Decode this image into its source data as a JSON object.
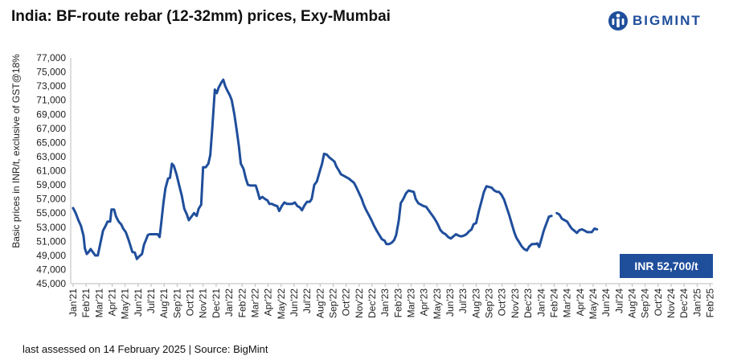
{
  "title": "India: BF-route rebar (12-32mm) prices, Exy-Mumbai",
  "brand": {
    "name": "BIGMINT",
    "color": "#1f4e9b"
  },
  "footer": "last assessed on 14 February 2025 | Source: BigMint",
  "chart_data": {
    "type": "line",
    "ylabel": "Basic prices in INR/t, exclusive of GST@18%",
    "ylim": [
      45000,
      77000
    ],
    "yticks": [
      "45,000",
      "47,000",
      "49,000",
      "51,000",
      "53,000",
      "55,000",
      "57,000",
      "59,000",
      "61,000",
      "63,000",
      "65,000",
      "67,000",
      "69,000",
      "71,000",
      "73,000",
      "75,000",
      "77,000"
    ],
    "categories": [
      "Jan'21",
      "Feb'21",
      "Mar'21",
      "Apr'21",
      "May'21",
      "Jun'21",
      "Jul'21",
      "Aug'21",
      "Sep'21",
      "Oct'21",
      "Nov'21",
      "Dec'21",
      "Jan'22",
      "Feb'22",
      "Mar'22",
      "Apr'22",
      "May'22",
      "Jun'22",
      "Jul'22",
      "Aug'22",
      "Sep'22",
      "Oct'22",
      "Nov'22",
      "Dec'22",
      "Jan'23",
      "Feb'23",
      "Mar'23",
      "Apr'23",
      "May'23",
      "Jun'23",
      "Jul'23",
      "Aug'23",
      "Sep'23",
      "Oct'23",
      "Nov'23",
      "Dec'23",
      "Jan'24",
      "Feb'24",
      "Mar'24",
      "Apr'24",
      "May'24",
      "Jun'24",
      "Jul'24",
      "Aug'24",
      "Sep'24",
      "Oct'24",
      "Nov'24",
      "Dec'24",
      "Jan'25",
      "Feb'25"
    ],
    "line_color": "#1f4e9b",
    "series": [
      {
        "values": [
          [
            0,
            55700
          ],
          [
            0.2,
            55000
          ],
          [
            0.4,
            54000
          ],
          [
            0.6,
            53200
          ],
          [
            0.8,
            51800
          ],
          [
            0.9,
            50000
          ],
          [
            1.05,
            49200
          ],
          [
            1.2,
            49500
          ],
          [
            1.35,
            49900
          ],
          [
            1.5,
            49500
          ],
          [
            1.7,
            49000
          ],
          [
            1.9,
            49000
          ],
          [
            2.1,
            50800
          ],
          [
            2.3,
            52500
          ],
          [
            2.5,
            53200
          ],
          [
            2.65,
            53800
          ],
          [
            2.85,
            53800
          ],
          [
            2.95,
            55500
          ],
          [
            3.15,
            55500
          ],
          [
            3.3,
            54500
          ],
          [
            3.5,
            53800
          ],
          [
            3.7,
            53400
          ],
          [
            3.85,
            52800
          ],
          [
            4.05,
            52300
          ],
          [
            4.25,
            51300
          ],
          [
            4.4,
            50400
          ],
          [
            4.55,
            49500
          ],
          [
            4.75,
            49400
          ],
          [
            4.9,
            48500
          ],
          [
            5.1,
            48900
          ],
          [
            5.3,
            49200
          ],
          [
            5.45,
            50500
          ],
          [
            5.6,
            51200
          ],
          [
            5.75,
            51900
          ],
          [
            5.9,
            52000
          ],
          [
            6.1,
            52000
          ],
          [
            6.3,
            52000
          ],
          [
            6.5,
            52000
          ],
          [
            6.65,
            51600
          ],
          [
            6.8,
            54000
          ],
          [
            6.95,
            56500
          ],
          [
            7.1,
            58500
          ],
          [
            7.3,
            59900
          ],
          [
            7.45,
            60000
          ],
          [
            7.6,
            62000
          ],
          [
            7.75,
            61700
          ],
          [
            7.95,
            60500
          ],
          [
            8.15,
            59000
          ],
          [
            8.35,
            57500
          ],
          [
            8.55,
            55600
          ],
          [
            8.75,
            54800
          ],
          [
            8.9,
            54000
          ],
          [
            9.1,
            54500
          ],
          [
            9.3,
            55000
          ],
          [
            9.5,
            54600
          ],
          [
            9.65,
            55600
          ],
          [
            9.85,
            56200
          ],
          [
            10.0,
            61500
          ],
          [
            10.2,
            61500
          ],
          [
            10.4,
            62000
          ],
          [
            10.55,
            63200
          ],
          [
            10.7,
            67000
          ],
          [
            10.9,
            72500
          ],
          [
            11.05,
            72000
          ],
          [
            11.2,
            72800
          ],
          [
            11.4,
            73500
          ],
          [
            11.55,
            73900
          ],
          [
            11.7,
            73000
          ],
          [
            11.85,
            72400
          ],
          [
            12.05,
            71700
          ],
          [
            12.2,
            71000
          ],
          [
            12.4,
            69000
          ],
          [
            12.6,
            66500
          ],
          [
            12.75,
            64500
          ],
          [
            12.9,
            62000
          ],
          [
            13.1,
            61300
          ],
          [
            13.3,
            59800
          ],
          [
            13.45,
            59000
          ],
          [
            13.65,
            58900
          ],
          [
            13.85,
            58900
          ],
          [
            14.05,
            58900
          ],
          [
            14.2,
            58000
          ],
          [
            14.35,
            57000
          ],
          [
            14.55,
            57300
          ],
          [
            14.75,
            57000
          ],
          [
            14.95,
            56800
          ],
          [
            15.1,
            56300
          ],
          [
            15.3,
            56300
          ],
          [
            15.5,
            56100
          ],
          [
            15.7,
            56000
          ],
          [
            15.85,
            55300
          ],
          [
            16.05,
            56000
          ],
          [
            16.25,
            56500
          ],
          [
            16.45,
            56300
          ],
          [
            16.65,
            56300
          ],
          [
            16.85,
            56300
          ],
          [
            17.05,
            56500
          ],
          [
            17.25,
            56000
          ],
          [
            17.45,
            55800
          ],
          [
            17.6,
            55400
          ],
          [
            17.8,
            56100
          ],
          [
            18.0,
            56600
          ],
          [
            18.2,
            56600
          ],
          [
            18.35,
            57000
          ],
          [
            18.55,
            59000
          ],
          [
            18.75,
            59500
          ],
          [
            18.95,
            60800
          ],
          [
            19.15,
            62000
          ],
          [
            19.3,
            63400
          ],
          [
            19.5,
            63300
          ],
          [
            19.7,
            62900
          ],
          [
            19.9,
            62600
          ],
          [
            20.1,
            62300
          ],
          [
            20.25,
            61600
          ],
          [
            20.45,
            61000
          ],
          [
            20.6,
            60500
          ],
          [
            20.8,
            60300
          ],
          [
            21.0,
            60100
          ],
          [
            21.2,
            59900
          ],
          [
            21.4,
            59600
          ],
          [
            21.6,
            59300
          ],
          [
            21.8,
            58600
          ],
          [
            22.0,
            57800
          ],
          [
            22.2,
            57000
          ],
          [
            22.35,
            56200
          ],
          [
            22.55,
            55400
          ],
          [
            22.75,
            54700
          ],
          [
            22.95,
            54000
          ],
          [
            23.15,
            53200
          ],
          [
            23.35,
            52500
          ],
          [
            23.55,
            51900
          ],
          [
            23.75,
            51300
          ],
          [
            23.95,
            51100
          ],
          [
            24.1,
            50600
          ],
          [
            24.3,
            50600
          ],
          [
            24.5,
            50800
          ],
          [
            24.7,
            51200
          ],
          [
            24.85,
            51900
          ],
          [
            25.05,
            54000
          ],
          [
            25.2,
            56400
          ],
          [
            25.4,
            57000
          ],
          [
            25.6,
            57800
          ],
          [
            25.8,
            58200
          ],
          [
            26.0,
            58100
          ],
          [
            26.2,
            58000
          ],
          [
            26.35,
            57000
          ],
          [
            26.55,
            56400
          ],
          [
            26.75,
            56200
          ],
          [
            26.95,
            56000
          ],
          [
            27.15,
            55900
          ],
          [
            27.3,
            55500
          ],
          [
            27.5,
            55000
          ],
          [
            27.7,
            54500
          ],
          [
            27.9,
            53900
          ],
          [
            28.05,
            53400
          ],
          [
            28.25,
            52600
          ],
          [
            28.45,
            52200
          ],
          [
            28.65,
            52000
          ],
          [
            28.85,
            51600
          ],
          [
            29.05,
            51400
          ],
          [
            29.25,
            51700
          ],
          [
            29.45,
            52000
          ],
          [
            29.65,
            51800
          ],
          [
            29.85,
            51700
          ],
          [
            30.05,
            51800
          ],
          [
            30.25,
            52000
          ],
          [
            30.45,
            52400
          ],
          [
            30.65,
            52700
          ],
          [
            30.8,
            53400
          ],
          [
            31.0,
            53600
          ],
          [
            31.2,
            55200
          ],
          [
            31.4,
            56600
          ],
          [
            31.6,
            58000
          ],
          [
            31.8,
            58800
          ],
          [
            32.0,
            58700
          ],
          [
            32.2,
            58600
          ],
          [
            32.4,
            58200
          ],
          [
            32.6,
            58000
          ],
          [
            32.75,
            58000
          ],
          [
            32.95,
            57600
          ],
          [
            33.15,
            56900
          ],
          [
            33.35,
            55800
          ],
          [
            33.55,
            54700
          ],
          [
            33.75,
            53400
          ],
          [
            33.95,
            52200
          ],
          [
            34.1,
            51500
          ],
          [
            34.3,
            50900
          ],
          [
            34.5,
            50300
          ],
          [
            34.7,
            49900
          ],
          [
            34.9,
            49700
          ],
          [
            35.1,
            50300
          ],
          [
            35.3,
            50600
          ],
          [
            35.5,
            50600
          ],
          [
            35.7,
            50700
          ],
          [
            35.85,
            50200
          ],
          [
            36.0,
            51200
          ],
          [
            36.2,
            52500
          ],
          [
            36.4,
            53500
          ],
          [
            36.6,
            54500
          ],
          [
            36.8,
            54600
          ],
          [
            37.0,
            null
          ],
          [
            37.2,
            55000
          ],
          [
            37.4,
            54800
          ],
          [
            37.6,
            54200
          ],
          [
            37.8,
            54000
          ],
          [
            38.0,
            53800
          ],
          [
            38.2,
            53200
          ],
          [
            38.35,
            52800
          ],
          [
            38.55,
            52500
          ],
          [
            38.75,
            52200
          ],
          [
            38.95,
            52600
          ],
          [
            39.15,
            52700
          ],
          [
            39.35,
            52500
          ],
          [
            39.55,
            52300
          ],
          [
            39.75,
            52300
          ],
          [
            39.9,
            52300
          ],
          [
            40.1,
            52800
          ],
          [
            40.3,
            52700
          ]
        ]
      }
    ],
    "data_label": "INR 52,700/t",
    "data_label_bg": "#1f4e9b"
  }
}
